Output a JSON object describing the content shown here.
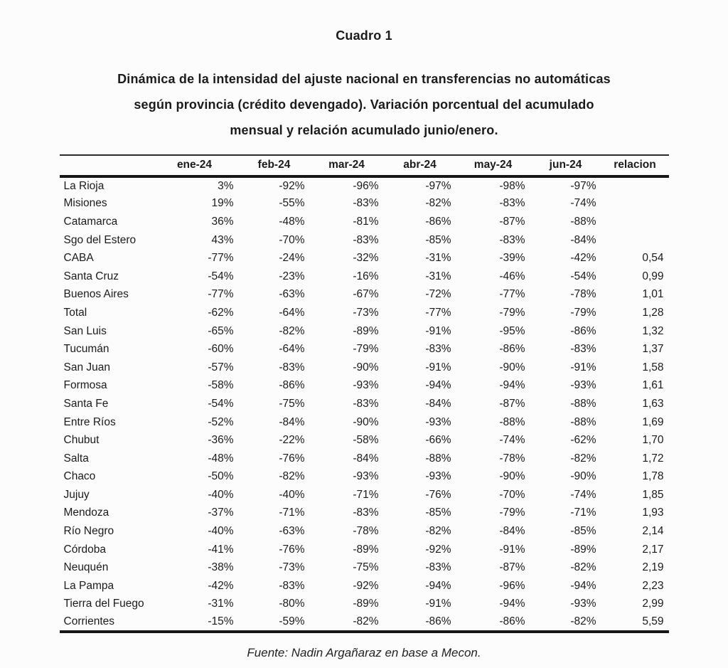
{
  "title": "Cuadro 1",
  "subtitle": "Dinámica de la intensidad del ajuste nacional en transferencias no automáticas según provincia (crédito devengado). Variación porcentual del acumulado mensual y relación acumulado junio/enero.",
  "source": "Fuente: Nadin Argañaraz en base a Mecon.",
  "colors": {
    "background": "#fcfcfc",
    "text": "#1b1b1b",
    "rule": "#161616"
  },
  "chart_data": {
    "type": "table",
    "columns": [
      "",
      "ene-24",
      "feb-24",
      "mar-24",
      "abr-24",
      "may-24",
      "jun-24",
      "relacion"
    ],
    "rows": [
      [
        "La Rioja",
        "3%",
        "-92%",
        "-96%",
        "-97%",
        "-98%",
        "-97%",
        ""
      ],
      [
        "Misiones",
        "19%",
        "-55%",
        "-83%",
        "-82%",
        "-83%",
        "-74%",
        ""
      ],
      [
        "Catamarca",
        "36%",
        "-48%",
        "-81%",
        "-86%",
        "-87%",
        "-88%",
        ""
      ],
      [
        "Sgo del Estero",
        "43%",
        "-70%",
        "-83%",
        "-85%",
        "-83%",
        "-84%",
        ""
      ],
      [
        "CABA",
        "-77%",
        "-24%",
        "-32%",
        "-31%",
        "-39%",
        "-42%",
        "0,54"
      ],
      [
        "Santa Cruz",
        "-54%",
        "-23%",
        "-16%",
        "-31%",
        "-46%",
        "-54%",
        "0,99"
      ],
      [
        "Buenos Aires",
        "-77%",
        "-63%",
        "-67%",
        "-72%",
        "-77%",
        "-78%",
        "1,01"
      ],
      [
        "Total",
        "-62%",
        "-64%",
        "-73%",
        "-77%",
        "-79%",
        "-79%",
        "1,28"
      ],
      [
        "San Luis",
        "-65%",
        "-82%",
        "-89%",
        "-91%",
        "-95%",
        "-86%",
        "1,32"
      ],
      [
        "Tucumán",
        "-60%",
        "-64%",
        "-79%",
        "-83%",
        "-86%",
        "-83%",
        "1,37"
      ],
      [
        "San Juan",
        "-57%",
        "-83%",
        "-90%",
        "-91%",
        "-90%",
        "-91%",
        "1,58"
      ],
      [
        "Formosa",
        "-58%",
        "-86%",
        "-93%",
        "-94%",
        "-94%",
        "-93%",
        "1,61"
      ],
      [
        "Santa Fe",
        "-54%",
        "-75%",
        "-83%",
        "-84%",
        "-87%",
        "-88%",
        "1,63"
      ],
      [
        "Entre Ríos",
        "-52%",
        "-84%",
        "-90%",
        "-93%",
        "-88%",
        "-88%",
        "1,69"
      ],
      [
        "Chubut",
        "-36%",
        "-22%",
        "-58%",
        "-66%",
        "-74%",
        "-62%",
        "1,70"
      ],
      [
        "Salta",
        "-48%",
        "-76%",
        "-84%",
        "-88%",
        "-78%",
        "-82%",
        "1,72"
      ],
      [
        "Chaco",
        "-50%",
        "-82%",
        "-93%",
        "-93%",
        "-90%",
        "-90%",
        "1,78"
      ],
      [
        "Jujuy",
        "-40%",
        "-40%",
        "-71%",
        "-76%",
        "-70%",
        "-74%",
        "1,85"
      ],
      [
        "Mendoza",
        "-37%",
        "-71%",
        "-83%",
        "-85%",
        "-79%",
        "-71%",
        "1,93"
      ],
      [
        "Río Negro",
        "-40%",
        "-63%",
        "-78%",
        "-82%",
        "-84%",
        "-85%",
        "2,14"
      ],
      [
        "Córdoba",
        "-41%",
        "-76%",
        "-89%",
        "-92%",
        "-91%",
        "-89%",
        "2,17"
      ],
      [
        "Neuquén",
        "-38%",
        "-73%",
        "-75%",
        "-83%",
        "-87%",
        "-82%",
        "2,19"
      ],
      [
        "La Pampa",
        "-42%",
        "-83%",
        "-92%",
        "-94%",
        "-96%",
        "-94%",
        "2,23"
      ],
      [
        "Tierra del Fuego",
        "-31%",
        "-80%",
        "-89%",
        "-91%",
        "-94%",
        "-93%",
        "2,99"
      ],
      [
        "Corrientes",
        "-15%",
        "-59%",
        "-82%",
        "-86%",
        "-86%",
        "-82%",
        "5,59"
      ]
    ]
  }
}
